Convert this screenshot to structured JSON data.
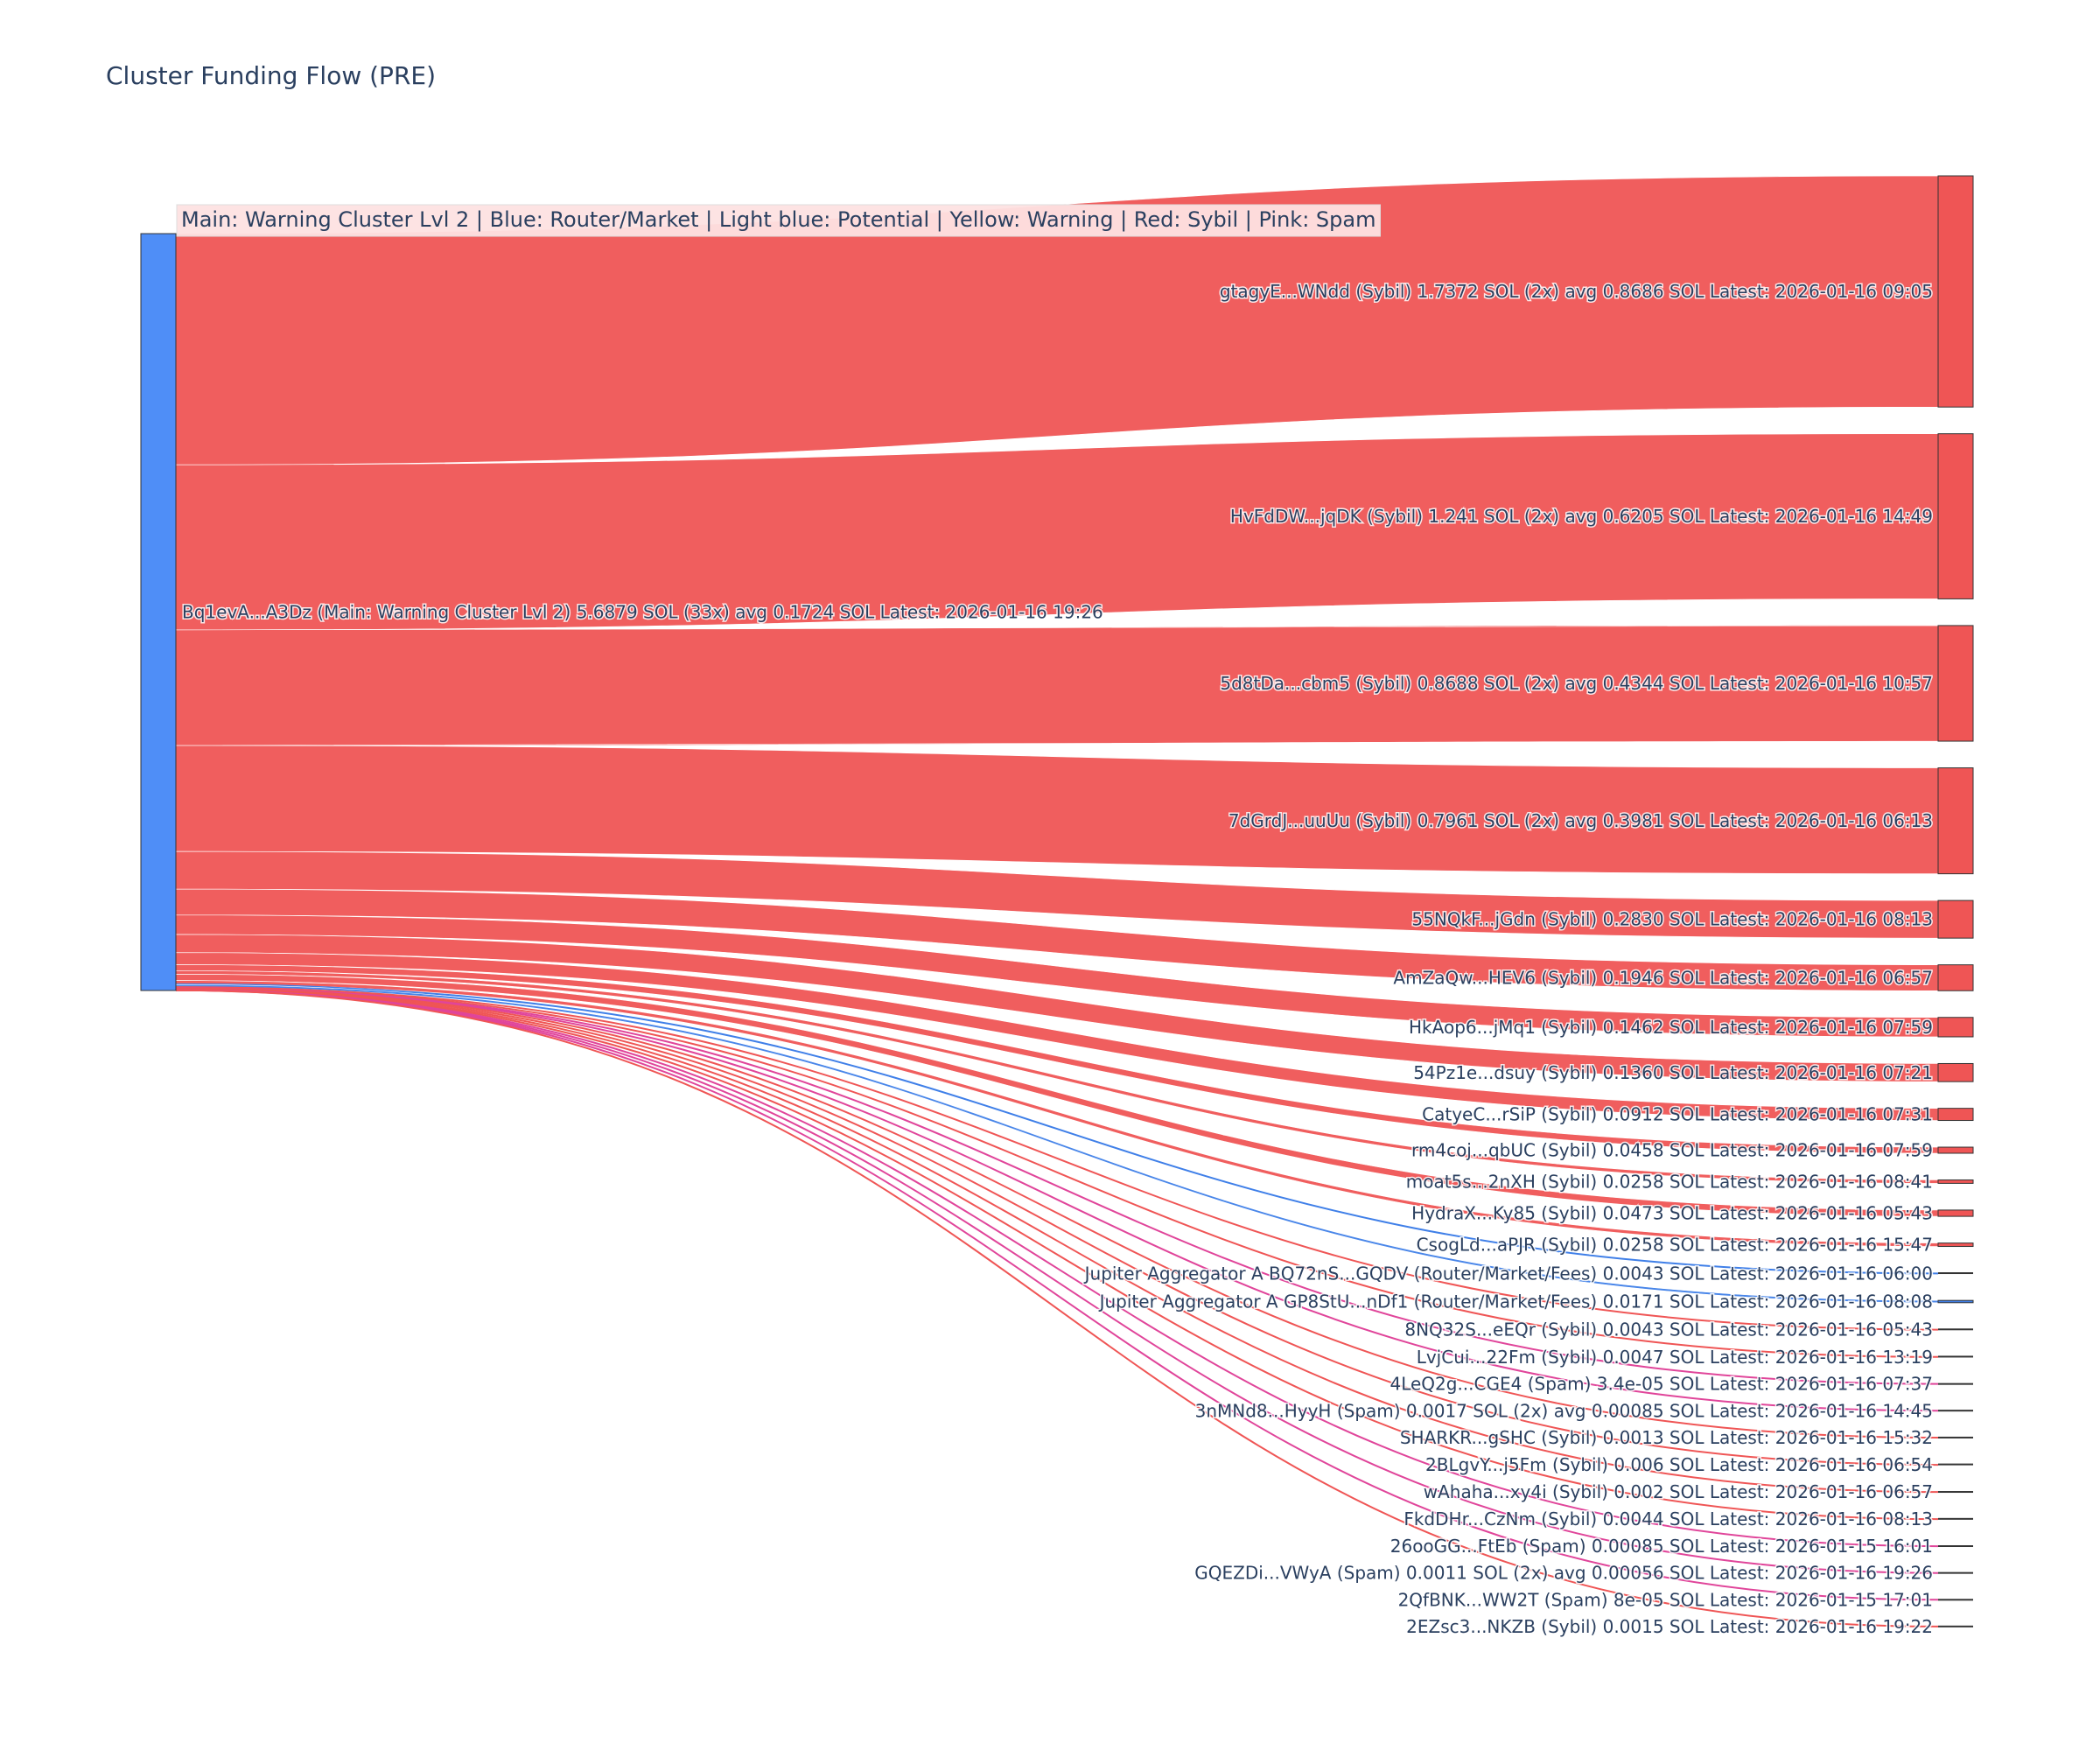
{
  "chart_data": {
    "type": "sankey",
    "title": "Cluster Funding Flow (PRE)",
    "legend_text": "Main: Warning Cluster Lvl 2  |  Blue: Router/Market | Light blue: Potential | Yellow: Warning | Red: Sybil | Pink: Spam",
    "colors": {
      "main": "#4f8ef7",
      "router": "#3f7fe8",
      "sybil": "#ef5555",
      "spam": "#e0459a",
      "legend_bg": "#fde2e2"
    },
    "source": {
      "label": "Bq1evA...A3Dz (Main: Warning Cluster Lvl 2) 5.6879 SOL (33x) avg 0.1724 SOL Latest: 2026-01-16 19:26",
      "value": 5.6879
    },
    "targets": [
      {
        "label": "gtagyE...WNdd (Sybil) 1.7372 SOL (2x) avg 0.8686 SOL Latest: 2026-01-16 09:05",
        "value": 1.7372,
        "type": "sybil"
      },
      {
        "label": "HvFdDW...jqDK (Sybil) 1.241 SOL (2x) avg 0.6205 SOL Latest: 2026-01-16 14:49",
        "value": 1.241,
        "type": "sybil"
      },
      {
        "label": "5d8tDa...cbm5 (Sybil) 0.8688 SOL (2x) avg 0.4344 SOL Latest: 2026-01-16 10:57",
        "value": 0.8688,
        "type": "sybil"
      },
      {
        "label": "7dGrdJ...uuUu (Sybil) 0.7961 SOL (2x) avg 0.3981 SOL Latest: 2026-01-16 06:13",
        "value": 0.7961,
        "type": "sybil"
      },
      {
        "label": "55NQkF...jGdn (Sybil) 0.2830 SOL Latest: 2026-01-16 08:13",
        "value": 0.283,
        "type": "sybil"
      },
      {
        "label": "AmZaQw...HEV6 (Sybil) 0.1946 SOL Latest: 2026-01-16 06:57",
        "value": 0.1946,
        "type": "sybil"
      },
      {
        "label": "HkAop6...jMq1 (Sybil) 0.1462 SOL Latest: 2026-01-16 07:59",
        "value": 0.1462,
        "type": "sybil"
      },
      {
        "label": "54Pz1e...dsuy (Sybil) 0.1360 SOL Latest: 2026-01-16 07:21",
        "value": 0.136,
        "type": "sybil"
      },
      {
        "label": "CatyeC...rSiP (Sybil) 0.0912 SOL Latest: 2026-01-16 07:31",
        "value": 0.0912,
        "type": "sybil"
      },
      {
        "label": "rm4coj...qbUC (Sybil) 0.0458 SOL Latest: 2026-01-16 07:59",
        "value": 0.0458,
        "type": "sybil"
      },
      {
        "label": "moat5s...2nXH (Sybil) 0.0258 SOL Latest: 2026-01-16 08:41",
        "value": 0.0258,
        "type": "sybil"
      },
      {
        "label": "HydraX...Ky85 (Sybil) 0.0473 SOL Latest: 2026-01-16 05:43",
        "value": 0.0473,
        "type": "sybil"
      },
      {
        "label": "CsogLd...aPJR (Sybil) 0.0258 SOL Latest: 2026-01-16 15:47",
        "value": 0.0258,
        "type": "sybil"
      },
      {
        "label": "Jupiter Aggregator A BQ72nS...GQDV (Router/Market/Fees) 0.0043 SOL Latest: 2026-01-16 06:00",
        "value": 0.0043,
        "type": "router"
      },
      {
        "label": "Jupiter Aggregator A GP8StU...nDf1 (Router/Market/Fees) 0.0171 SOL Latest: 2026-01-16 08:08",
        "value": 0.0171,
        "type": "router"
      },
      {
        "label": "8NQ32S...eEQr (Sybil) 0.0043 SOL Latest: 2026-01-16 05:43",
        "value": 0.0043,
        "type": "sybil"
      },
      {
        "label": "LvjCui...22Fm (Sybil) 0.0047 SOL Latest: 2026-01-16 13:19",
        "value": 0.0047,
        "type": "sybil"
      },
      {
        "label": "4LeQ2g...CGE4 (Spam) 3.4e-05 SOL Latest: 2026-01-16 07:37",
        "value": 3.4e-05,
        "type": "spam"
      },
      {
        "label": "3nMNd8...HyyH (Spam) 0.0017 SOL (2x) avg 0.00085 SOL Latest: 2026-01-16 14:45",
        "value": 0.0017,
        "type": "spam"
      },
      {
        "label": "SHARKR...gSHC (Sybil) 0.0013 SOL Latest: 2026-01-16 15:32",
        "value": 0.0013,
        "type": "sybil"
      },
      {
        "label": "2BLgvY...j5Fm (Sybil) 0.006 SOL Latest: 2026-01-16 06:54",
        "value": 0.006,
        "type": "sybil"
      },
      {
        "label": "wAhaha...xy4i (Sybil) 0.002 SOL Latest: 2026-01-16 06:57",
        "value": 0.002,
        "type": "sybil"
      },
      {
        "label": "FkdDHr...CzNm (Sybil) 0.0044 SOL Latest: 2026-01-16 08:13",
        "value": 0.0044,
        "type": "sybil"
      },
      {
        "label": "26ooGG...FtEb (Spam) 0.00085 SOL Latest: 2026-01-15 16:01",
        "value": 0.00085,
        "type": "spam"
      },
      {
        "label": "GQEZDi...VWyA (Spam) 0.0011 SOL (2x) avg 0.00056 SOL Latest: 2026-01-16 19:26",
        "value": 0.0011,
        "type": "spam"
      },
      {
        "label": "2QfBNK...WW2T (Spam) 8e-05 SOL Latest: 2026-01-15 17:01",
        "value": 8e-05,
        "type": "spam"
      },
      {
        "label": "2EZsc3...NKZB (Sybil) 0.0015 SOL Latest: 2026-01-16 19:22",
        "value": 0.0015,
        "type": "sybil"
      }
    ]
  }
}
